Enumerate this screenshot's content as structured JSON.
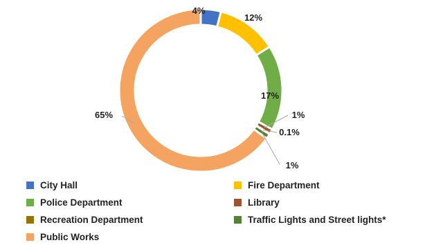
{
  "chart_data": {
    "type": "pie",
    "variant": "donut",
    "title": "",
    "series": [
      {
        "name": "City Hall",
        "value": 4,
        "label": "4%",
        "color": "#4472C4"
      },
      {
        "name": "Fire Department",
        "value": 12,
        "label": "12%",
        "color": "#FFC000"
      },
      {
        "name": "Police Department",
        "value": 17,
        "label": "17%",
        "color": "#70AD47"
      },
      {
        "name": "Library",
        "value": 1,
        "label": "1%",
        "color": "#A0522D"
      },
      {
        "name": "Recreation Department",
        "value": 0.1,
        "label": "0.1%",
        "color": "#997300"
      },
      {
        "name": "Traffic Lights and Street lights*",
        "value": 1,
        "label": "1%",
        "color": "#548235"
      },
      {
        "name": "Public Works",
        "value": 65,
        "label": "65%",
        "color": "#F4A460"
      }
    ],
    "legend_position": "bottom"
  }
}
